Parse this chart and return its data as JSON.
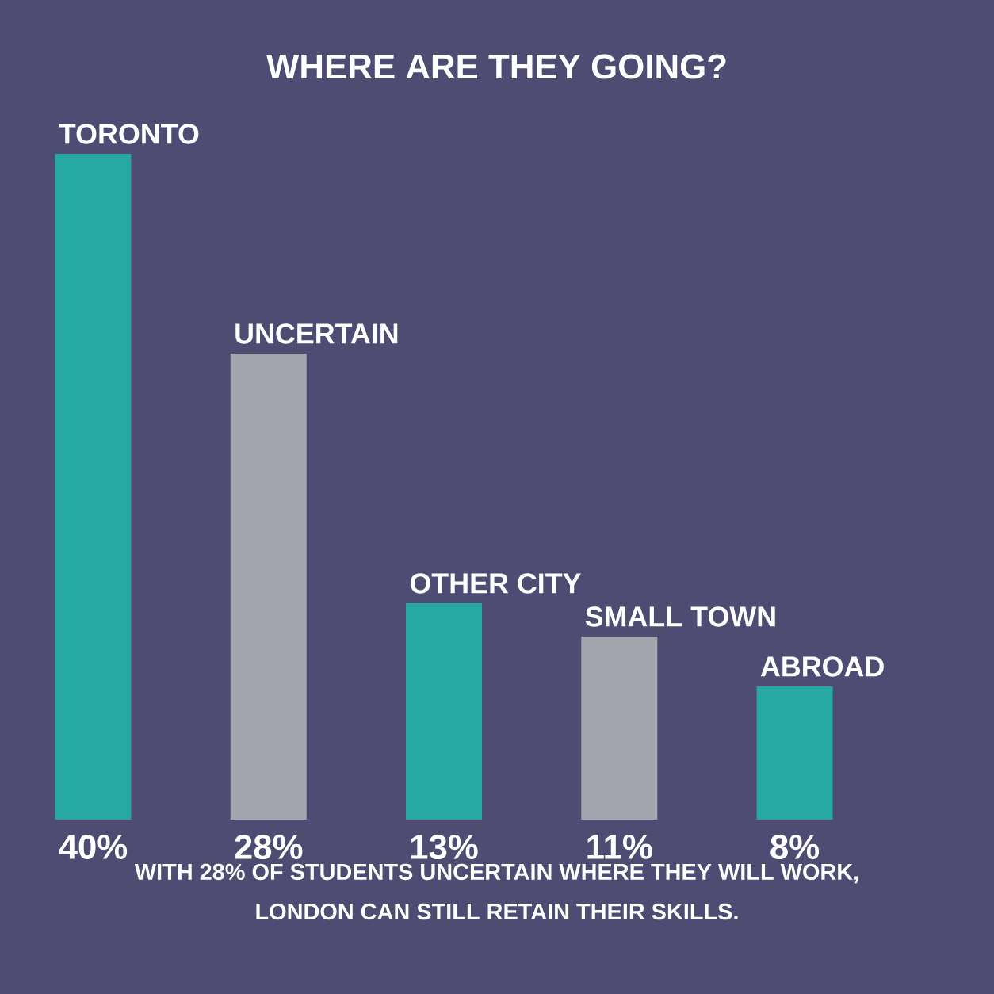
{
  "chart_data": {
    "type": "bar",
    "title": "WHERE ARE THEY GOING?",
    "categories": [
      "TORONTO",
      "UNCERTAIN",
      "OTHER CITY",
      "SMALL TOWN",
      "ABROAD"
    ],
    "values": [
      40,
      28,
      13,
      11,
      8
    ],
    "colors": [
      "#27a8a2",
      "#a3a6ae",
      "#27a8a2",
      "#a3a6ae",
      "#27a8a2"
    ],
    "value_labels": [
      "40%",
      "28%",
      "13%",
      "11%",
      "8%"
    ],
    "annotations": [
      "WITH 28% OF STUDENTS UNCERTAIN WHERE THEY WILL WORK,",
      "LONDON CAN STILL RETAIN THEIR SKILLS."
    ]
  }
}
